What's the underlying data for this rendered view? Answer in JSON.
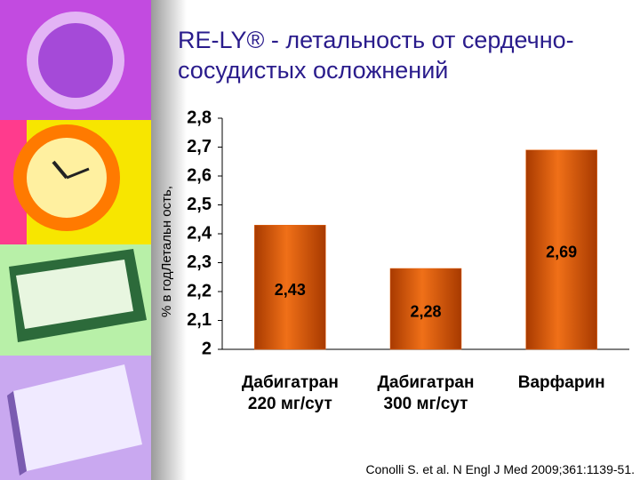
{
  "chart_data": {
    "type": "bar",
    "title": "RE-LY® - летальность от сердечно-сосудистых осложнений",
    "y_label": "% в годЛетальн ость,",
    "categories": [
      "Дабигатран\n220 мг/сут",
      "Дабигатран\n300 мг/сут",
      "Варфарин"
    ],
    "values": [
      2.43,
      2.28,
      2.69
    ],
    "value_labels": [
      "2,43",
      "2,28",
      "2,69"
    ],
    "color": "#e8650f",
    "ylim": [
      2,
      2.8
    ],
    "yticks": [
      2,
      {
        "value": 2.1,
        "label": "2,1"
      },
      {
        "value": 2.2,
        "label": "2,2"
      },
      {
        "value": 2.3,
        "label": "2,3"
      },
      {
        "value": 2.4,
        "label": "2,4"
      },
      {
        "value": 2.5,
        "label": "2,5"
      },
      {
        "value": 2.6,
        "label": "2,6"
      },
      {
        "value": 2.7,
        "label": "2,7"
      },
      {
        "value": 2.8,
        "label": "2,8"
      }
    ],
    "grid": false,
    "source": "Conolli S. et al. N Engl J Med 2009;361:1139-51."
  }
}
